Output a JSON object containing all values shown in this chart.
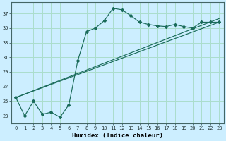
{
  "xlabel": "Humidex (Indice chaleur)",
  "bg_color": "#cceeff",
  "line_color": "#1a6b5a",
  "grid_color": "#aaddcc",
  "xlim": [
    -0.5,
    23.5
  ],
  "ylim": [
    22.0,
    38.5
  ],
  "xticks": [
    0,
    1,
    2,
    3,
    4,
    5,
    6,
    7,
    8,
    9,
    10,
    11,
    12,
    13,
    14,
    15,
    16,
    17,
    18,
    19,
    20,
    21,
    22,
    23
  ],
  "yticks": [
    23,
    25,
    27,
    29,
    31,
    33,
    35,
    37
  ],
  "series1_x": [
    0,
    1,
    2,
    3,
    4,
    5,
    6,
    7,
    8,
    9,
    10,
    11,
    12,
    13,
    14,
    15,
    16,
    17,
    18,
    19,
    20,
    21,
    22,
    23
  ],
  "series1_y": [
    25.5,
    23.0,
    25.0,
    23.2,
    23.5,
    22.8,
    24.5,
    30.5,
    34.5,
    35.0,
    36.0,
    37.7,
    37.5,
    36.7,
    35.8,
    35.5,
    35.3,
    35.2,
    35.5,
    35.2,
    35.0,
    35.8,
    35.8,
    35.8
  ],
  "series2_x": [
    0,
    23
  ],
  "series2_y": [
    25.5,
    35.8
  ],
  "series3_x": [
    0,
    23
  ],
  "series3_y": [
    25.5,
    36.3
  ],
  "title_fontsize": 7,
  "xlabel_fontsize": 6.5,
  "tick_fontsize": 5.0
}
